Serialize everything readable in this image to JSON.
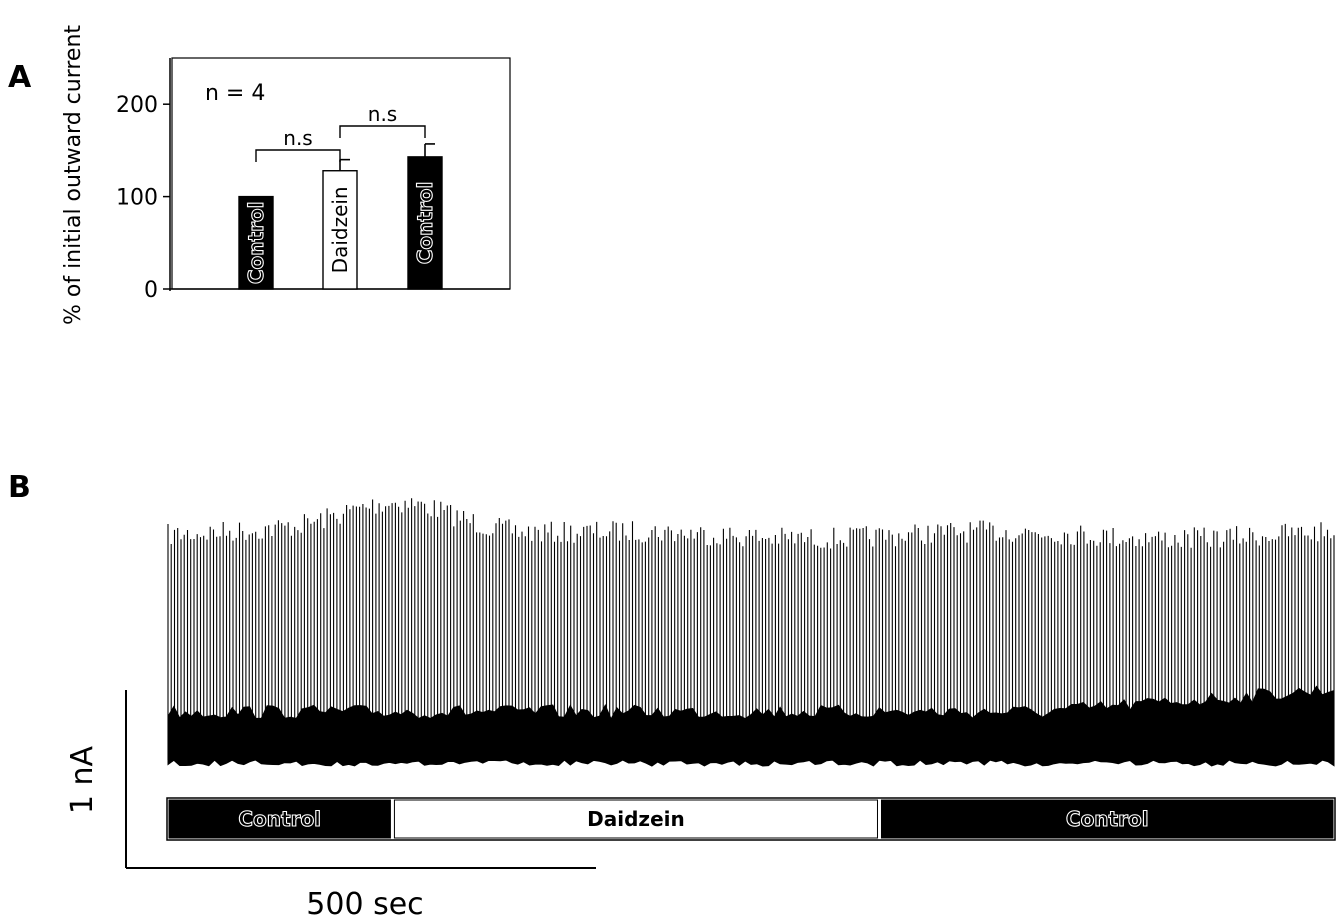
{
  "panels": {
    "a_label": "A",
    "b_label": "B"
  },
  "chart_data": [
    {
      "type": "bar",
      "panel": "A",
      "categories": [
        "Control",
        "Daidzein",
        "Control"
      ],
      "values": [
        100,
        128,
        143
      ],
      "errors": [
        0,
        12,
        14
      ],
      "bar_colors": [
        "#000000",
        "#ffffff",
        "#000000"
      ],
      "ylabel": "% of initial outward current",
      "ylim": [
        0,
        250
      ],
      "yticks": [
        0,
        100,
        200
      ],
      "annotation": "n = 4",
      "comparisons": [
        {
          "from": 0,
          "to": 1,
          "label": "n.s"
        },
        {
          "from": 1,
          "to": 2,
          "label": "n.s"
        }
      ]
    },
    {
      "type": "line",
      "panel": "B",
      "description_free": true,
      "conditions": [
        {
          "label": "Control",
          "color": "#000000"
        },
        {
          "label": "Daidzein",
          "color": "#ffffff"
        },
        {
          "label": "Control",
          "color": "#000000"
        }
      ],
      "condition_fractions": [
        0.193,
        0.417,
        0.39
      ],
      "scale_bar": {
        "y_label": "1 nA",
        "x_label": "500 sec"
      }
    }
  ]
}
